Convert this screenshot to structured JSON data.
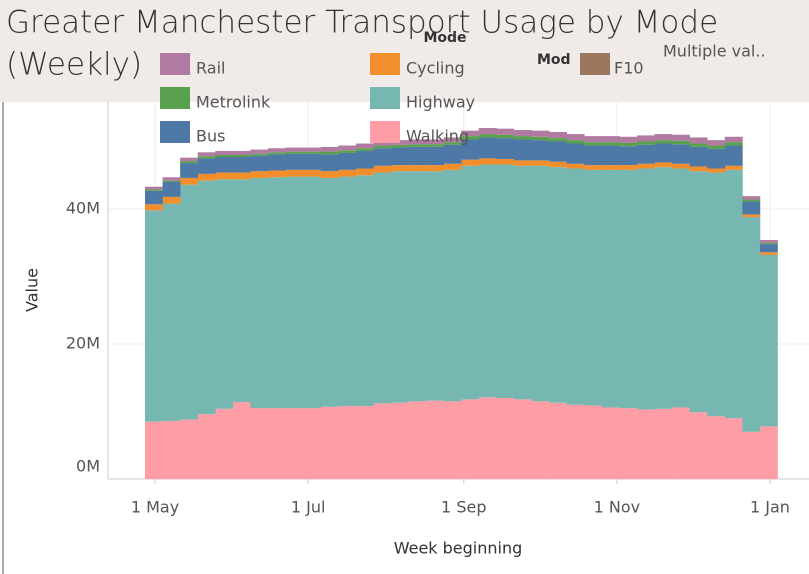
{
  "chart_data": {
    "type": "stacked_area_step",
    "title": "Greater Manchester Transport Usage by Mode (Weekly)",
    "title_lines": [
      "Greater Manchester Transport Usage by Mode",
      "(Weekly)"
    ],
    "legend_title": "Mode",
    "legend2": {
      "title": "Mod",
      "items": [
        {
          "name": "F10",
          "color": "#9c755f"
        }
      ]
    },
    "filter_text": "Multiple val..",
    "x_label": "Week beginning",
    "y_label": "Value",
    "x": [
      "04-27",
      "05-04",
      "05-11",
      "05-18",
      "05-25",
      "06-01",
      "06-08",
      "06-15",
      "06-22",
      "06-29",
      "07-06",
      "07-13",
      "07-20",
      "07-27",
      "08-03",
      "08-10",
      "08-17",
      "08-24",
      "08-31",
      "09-07",
      "09-14",
      "09-21",
      "09-28",
      "10-05",
      "10-12",
      "10-19",
      "10-26",
      "11-02",
      "11-09",
      "11-16",
      "11-23",
      "11-30",
      "12-07",
      "12-14",
      "12-21",
      "12-28"
    ],
    "series": [
      {
        "name": "Rail",
        "color": "#b07aa1",
        "values": [
          400000,
          500000,
          500000,
          600000,
          600000,
          600000,
          600000,
          600000,
          600000,
          600000,
          700000,
          700000,
          700000,
          700000,
          700000,
          700000,
          700000,
          700000,
          800000,
          900000,
          900000,
          900000,
          900000,
          900000,
          900000,
          900000,
          900000,
          900000,
          900000,
          900000,
          900000,
          900000,
          800000,
          800000,
          500000,
          400000
        ]
      },
      {
        "name": "Metrolink",
        "color": "#59a14f",
        "values": [
          200000,
          200000,
          300000,
          300000,
          300000,
          300000,
          300000,
          300000,
          300000,
          300000,
          400000,
          400000,
          400000,
          400000,
          400000,
          400000,
          400000,
          400000,
          500000,
          500000,
          500000,
          500000,
          500000,
          500000,
          500000,
          500000,
          500000,
          500000,
          500000,
          500000,
          500000,
          500000,
          500000,
          500000,
          300000,
          200000
        ]
      },
      {
        "name": "Bus",
        "color": "#4e79a7",
        "values": [
          2000000,
          2200000,
          2200000,
          2300000,
          2300000,
          2300000,
          2300000,
          2400000,
          2400000,
          2400000,
          2500000,
          2500000,
          2600000,
          2600000,
          2600000,
          2700000,
          2700000,
          2800000,
          3000000,
          3100000,
          3100000,
          3100000,
          3000000,
          3000000,
          3000000,
          2900000,
          2900000,
          2800000,
          2800000,
          2800000,
          2900000,
          2900000,
          2900000,
          3000000,
          1900000,
          1200000
        ]
      },
      {
        "name": "Cycling",
        "color": "#f28e2b",
        "values": [
          900000,
          1000000,
          1000000,
          1000000,
          1000000,
          1000000,
          1000000,
          1000000,
          1000000,
          1000000,
          1000000,
          1000000,
          1000000,
          1000000,
          900000,
          900000,
          900000,
          900000,
          900000,
          900000,
          800000,
          800000,
          800000,
          800000,
          700000,
          700000,
          700000,
          700000,
          700000,
          700000,
          700000,
          700000,
          600000,
          600000,
          400000,
          400000
        ]
      },
      {
        "name": "Highway",
        "color": "#76b7b2",
        "values": [
          31300000,
          32200000,
          34800000,
          34600000,
          34000000,
          33000000,
          34100000,
          34200000,
          34300000,
          34300000,
          33900000,
          34000000,
          34200000,
          34200000,
          34300000,
          34100000,
          34000000,
          34300000,
          34600000,
          34500000,
          34600000,
          34600000,
          34900000,
          34900000,
          35000000,
          34900000,
          35200000,
          35300000,
          35700000,
          35800000,
          35400000,
          35700000,
          36100000,
          36800000,
          31800000,
          25400000
        ]
      },
      {
        "name": "Walking",
        "color": "#ff9da7",
        "values": [
          8500000,
          8600000,
          8800000,
          9600000,
          10400000,
          11400000,
          10500000,
          10500000,
          10500000,
          10500000,
          10700000,
          10800000,
          10800000,
          11200000,
          11300000,
          11500000,
          11600000,
          11500000,
          11800000,
          12100000,
          12000000,
          11800000,
          11500000,
          11300000,
          11000000,
          10900000,
          10600000,
          10500000,
          10300000,
          10400000,
          10600000,
          9900000,
          9300000,
          9000000,
          7000000,
          7800000
        ]
      }
    ],
    "ylim": [
      0,
      56000000
    ],
    "yticks": [
      {
        "value": 0,
        "label": "0M"
      },
      {
        "value": 20000000,
        "label": "20M"
      },
      {
        "value": 40000000,
        "label": "40M"
      }
    ],
    "xticks": [
      {
        "value": "05-01",
        "label": "1 May"
      },
      {
        "value": "07-01",
        "label": "1 Jul"
      },
      {
        "value": "09-01",
        "label": "1 Sep"
      },
      {
        "value": "11-01",
        "label": "1 Nov"
      },
      {
        "value": "01-01",
        "label": "1 Jan"
      }
    ],
    "grid": true
  }
}
